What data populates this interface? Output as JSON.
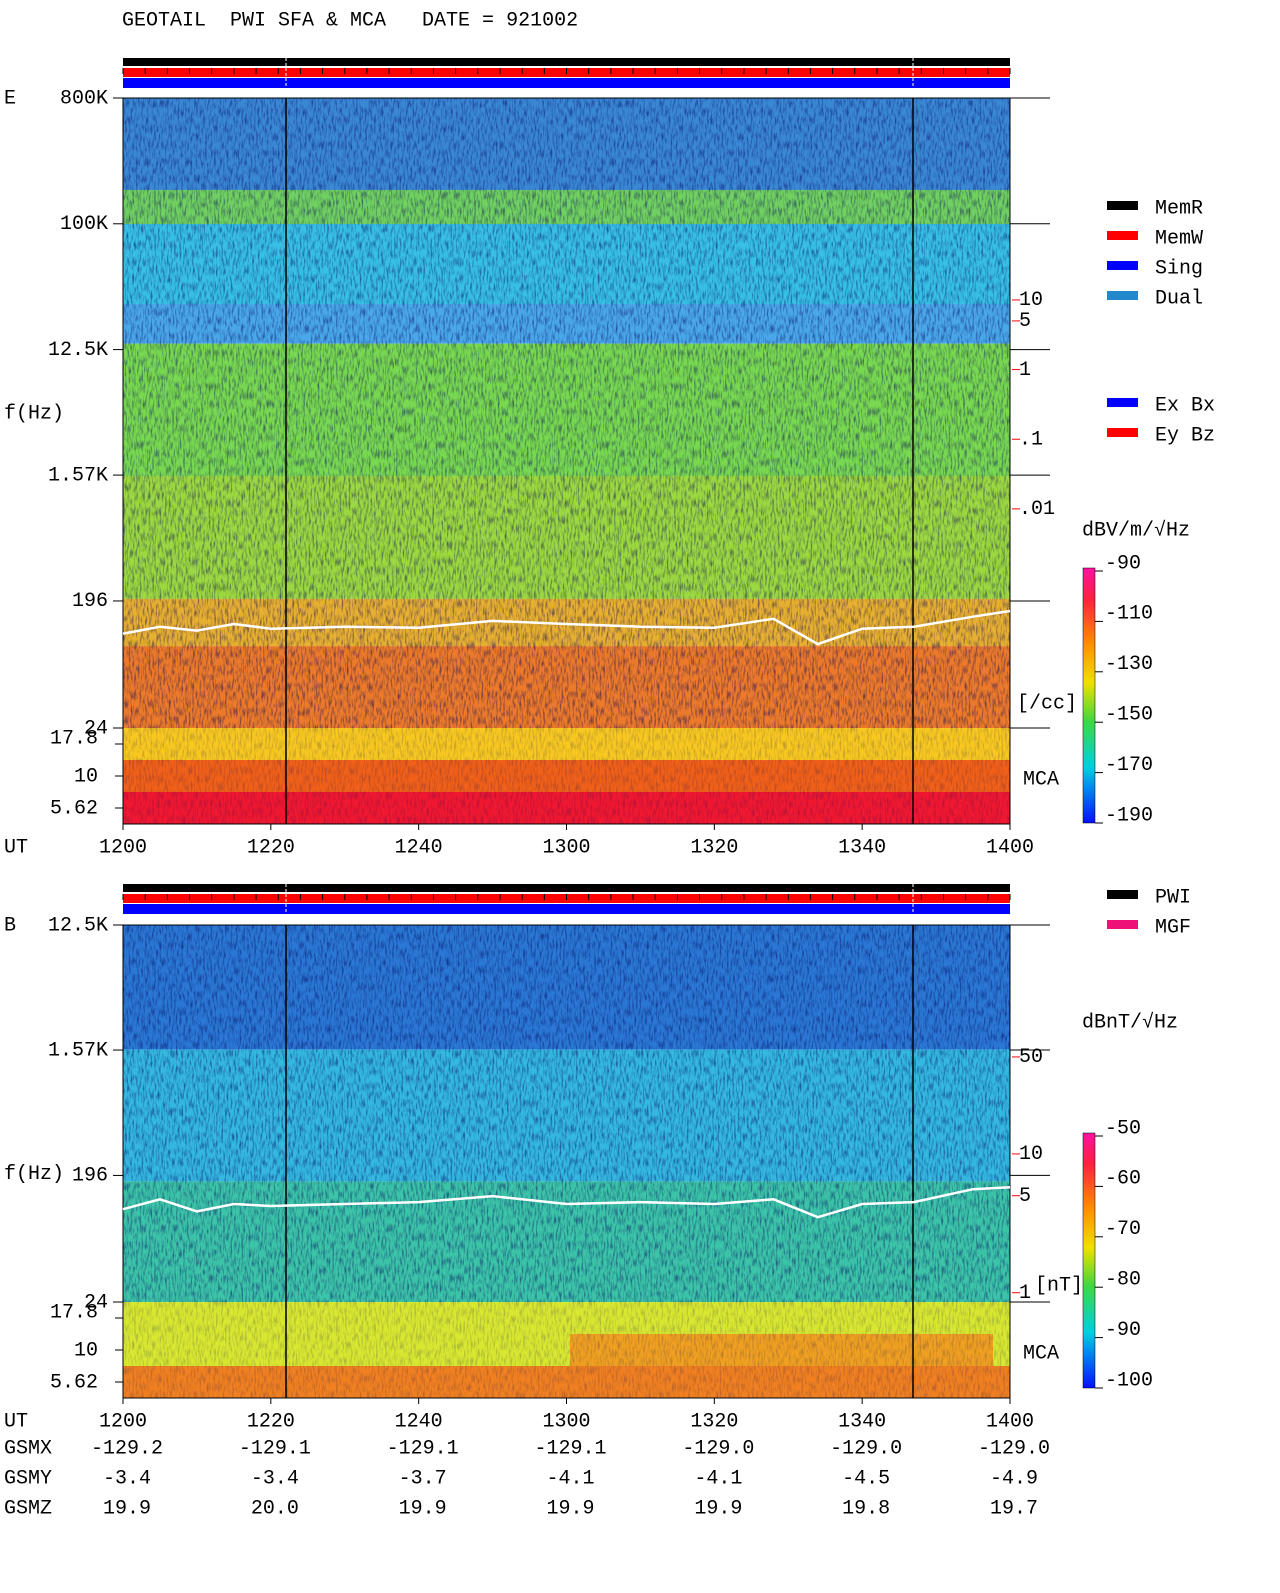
{
  "title": "GEOTAIL  PWI SFA & MCA   DATE = 921002",
  "chart_data": [
    {
      "type": "spectrogram",
      "panel_label": "E",
      "y_label": "f(Hz)",
      "x_label": "UT",
      "log_y": true,
      "xlim": [
        1200,
        1400
      ],
      "xticks": [
        1200,
        1220,
        1240,
        1300,
        1320,
        1340,
        1400
      ],
      "ylim": [
        24,
        800000
      ],
      "yticks": [
        24,
        196,
        {
          "value": 1570,
          "label": "1.57K"
        },
        {
          "value": 12500,
          "label": "12.5K"
        },
        {
          "value": 100000,
          "label": "100K"
        },
        {
          "value": 800000,
          "label": "800K"
        }
      ],
      "mca_label": "MCA",
      "mca_channels": [
        17.8,
        10,
        5.62
      ],
      "line": {
        "color": "#ffffff",
        "x": [
          1200,
          1205,
          1210,
          1215,
          1220,
          1230,
          1240,
          1250,
          1300,
          1310,
          1320,
          1328,
          1334,
          1340,
          1347,
          1355,
          1400
        ],
        "values": [
          114,
          128,
          120,
          134,
          124,
          128,
          126,
          141,
          134,
          128,
          126,
          146,
          96,
          124,
          128,
          151,
          166
        ]
      },
      "colorbar": {
        "label": "dBV/m/√Hz",
        "clim": [
          -190,
          -90
        ],
        "ticks": [
          -90,
          -110,
          -130,
          -150,
          -170,
          -190
        ]
      },
      "right_axis": {
        "kind": "density",
        "color": "#ff0000",
        "label": "[/cc]",
        "ticks": [
          10,
          5,
          1,
          {
            "value": 0.1,
            "label": ".1"
          },
          {
            "value": 0.01,
            "label": ".01"
          }
        ]
      },
      "legend_groups": [
        [
          {
            "name": "MemR",
            "color": "#000000"
          },
          {
            "name": "MemW",
            "color": "#ff0000"
          },
          {
            "name": "Sing",
            "color": "#0000ff"
          },
          {
            "name": "Dual",
            "color": "#2288cc"
          }
        ],
        [
          {
            "name": "Ex Bx",
            "color": "#0000ff"
          },
          {
            "name": "Ey Bz",
            "color": "#ff0000"
          }
        ]
      ]
    },
    {
      "type": "spectrogram",
      "panel_label": "B",
      "y_label": "f(Hz)",
      "x_label": "UT",
      "log_y": true,
      "xlim": [
        1200,
        1400
      ],
      "xticks": [
        1200,
        1220,
        1240,
        1300,
        1320,
        1340,
        1400
      ],
      "ylim": [
        24,
        12500
      ],
      "yticks": [
        24,
        196,
        {
          "value": 1570,
          "label": "1.57K"
        },
        {
          "value": 12500,
          "label": "12.5K"
        }
      ],
      "mca_label": "MCA",
      "mca_channels": [
        17.8,
        10,
        5.62
      ],
      "line": {
        "color": "#ffffff",
        "x": [
          1200,
          1205,
          1210,
          1215,
          1220,
          1230,
          1240,
          1250,
          1300,
          1310,
          1320,
          1328,
          1334,
          1340,
          1347,
          1355,
          1400
        ],
        "values": [
          112,
          132,
          108,
          122,
          118,
          122,
          126,
          139,
          122,
          126,
          122,
          132,
          98,
          122,
          126,
          156,
          161
        ]
      },
      "colorbar": {
        "label": "dBnT/√Hz",
        "clim": [
          -100,
          -50
        ],
        "ticks": [
          -50,
          -60,
          -70,
          -80,
          -90,
          -100
        ]
      },
      "right_axis": {
        "kind": "field",
        "color": "#ff0000",
        "label": "[nT]",
        "ticks": [
          50,
          10,
          5,
          1
        ]
      },
      "legend_groups": [
        [
          {
            "name": "PWI",
            "color": "#000000"
          },
          {
            "name": "MGF",
            "color": "#ee1177"
          }
        ]
      ]
    }
  ],
  "orbit": {
    "rows": [
      {
        "label": "GSMX",
        "values": [
          "-129.2",
          "-129.1",
          "-129.1",
          "-129.1",
          "-129.0",
          "-129.0",
          "-129.0"
        ]
      },
      {
        "label": "GSMY",
        "values": [
          "-3.4",
          "-3.4",
          "-3.7",
          "-4.1",
          "-4.1",
          "-4.5",
          "-4.9"
        ]
      },
      {
        "label": "GSMZ",
        "values": [
          "19.9",
          "20.0",
          "19.9",
          "19.9",
          "19.9",
          "19.8",
          "19.7"
        ]
      }
    ]
  }
}
